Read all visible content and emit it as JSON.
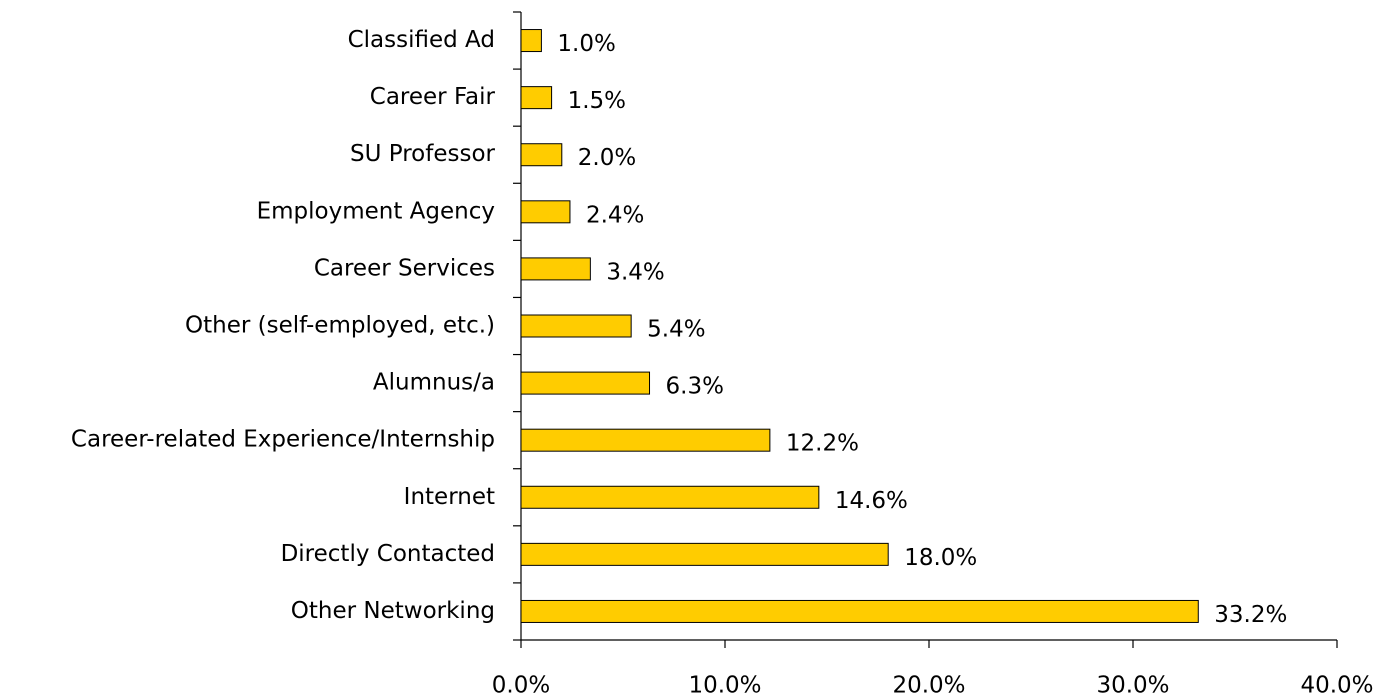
{
  "chart_data": {
    "type": "barh",
    "categories": [
      "Classified Ad",
      "Career Fair",
      "SU Professor",
      "Employment Agency",
      "Career Services",
      "Other (self-employed, etc.)",
      "Alumnus/a",
      "Career-related Experience/Internship",
      "Internet",
      "Directly Contacted",
      "Other Networking"
    ],
    "values": [
      1.0,
      1.5,
      2.0,
      2.4,
      3.4,
      5.4,
      6.3,
      12.2,
      14.6,
      18.0,
      33.2
    ],
    "value_labels": [
      "1.0%",
      "1.5%",
      "2.0%",
      "2.4%",
      "3.4%",
      "5.4%",
      "6.3%",
      "12.2%",
      "14.6%",
      "18.0%",
      "33.2%"
    ],
    "color": "#ffcc00",
    "xlim": [
      0,
      40
    ],
    "xticks": [
      {
        "value": 0,
        "label": "0.0%"
      },
      {
        "value": 10,
        "label": "10.0%"
      },
      {
        "value": 20,
        "label": "20.0%"
      },
      {
        "value": 30,
        "label": "30.0%"
      },
      {
        "value": 40,
        "label": "40.0%"
      }
    ],
    "grid": false
  }
}
